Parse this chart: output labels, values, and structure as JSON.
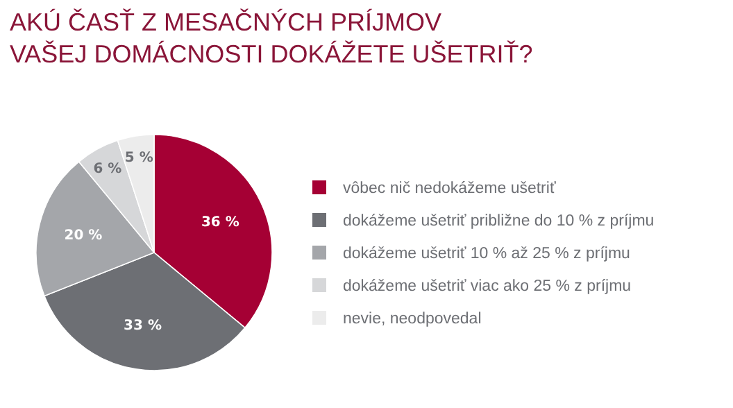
{
  "chart_data": {
    "type": "pie",
    "title": "AKÚ ČASŤ Z MESAČNÝCH PRÍJMOV\nVAŠEJ DOMÁCNOSTI DOKÁŽETE UŠETRIŤ?",
    "categories": [
      "vôbec nič nedokážeme ušetriť",
      "dokážeme ušetriť približne do 10 % z príjmu",
      "dokážeme ušetriť 10 % až 25 % z príjmu",
      "dokážeme ušetriť viac ako 25 % z príjmu",
      "nevie, neodpovedal"
    ],
    "values": [
      36,
      33,
      20,
      6,
      5
    ],
    "value_labels": [
      "36 %",
      "33 %",
      "20 %",
      "6 %",
      "5 %"
    ],
    "colors": [
      "#a50034",
      "#6d6f74",
      "#a4a6aa",
      "#d6d7d9",
      "#ececec"
    ],
    "legend": "right"
  }
}
